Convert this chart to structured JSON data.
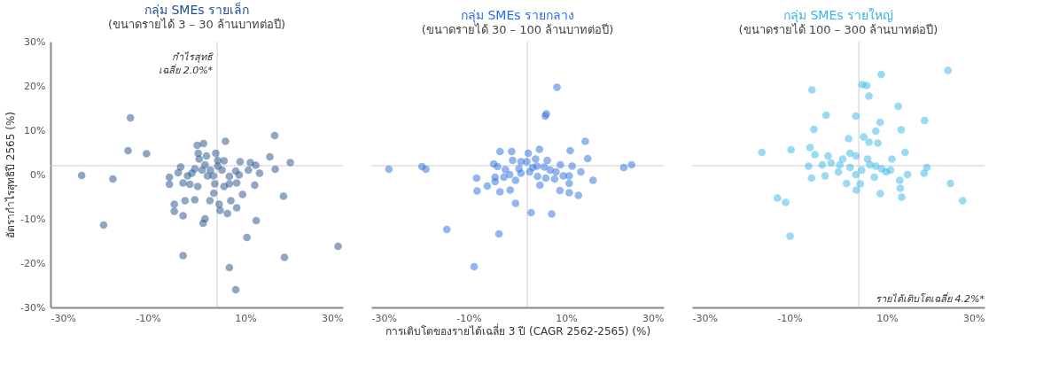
{
  "chart_data": [
    {
      "type": "scatter",
      "title": "กลุ่ม SMEs รายเล็ก",
      "subtitle": "(ขนาดรายได้ 3 – 30 ล้านบาทต่อปี)",
      "ylabel": "อัตรากำไรสุทธิปี 2565 (%)",
      "xlim": [
        -30,
        30
      ],
      "ylim": [
        -30,
        30
      ],
      "xticks": [
        {
          "value": -30,
          "label": "-30%"
        },
        {
          "value": -10,
          "label": "-10%"
        },
        {
          "value": 10,
          "label": "10%"
        },
        {
          "value": 30,
          "label": "30%"
        }
      ],
      "yticks": [
        {
          "value": -30,
          "label": "-30%"
        },
        {
          "value": -20,
          "label": "-20%"
        },
        {
          "value": -10,
          "label": "-10%"
        },
        {
          "value": 0,
          "label": "0%"
        },
        {
          "value": 10,
          "label": "10%"
        },
        {
          "value": 20,
          "label": "20%"
        },
        {
          "value": 30,
          "label": "30%"
        }
      ],
      "grid": false,
      "marker": "circle",
      "annotations": [
        "กำไรสุทธิ เฉลี่ย 2.0%*"
      ],
      "ref_lines": [
        {
          "axis": "x",
          "value": 4.2,
          "color": "#cccccc"
        },
        {
          "axis": "y",
          "value": 2.0,
          "color": "#cccccc"
        }
      ],
      "series": [
        {
          "color": "#1f4e8c",
          "x": [
            -13.6,
            -14.1,
            -10.3,
            -23.6,
            -17.2,
            -19.1,
            -2.8,
            16.0,
            15.0,
            19.2,
            16.1,
            17.8,
            18.0,
            29.0,
            6.7,
            8.0,
            10.3,
            12.2,
            11.9,
            9.4,
            8.2,
            6.3,
            7.0,
            4.8,
            4.6,
            1.7,
            1.3,
            -0.4,
            -2.4,
            -2.8,
            -4.6,
            -4.6,
            -5.6,
            -5.6,
            -2.8,
            -3.3,
            -3.8,
            -1.4,
            0.2,
            0.1,
            1.4,
            5.9,
            3.9,
            5.6,
            8.9,
            11.0,
            12.1,
            12.9,
            10.6,
            8.7,
            8.0,
            6.7,
            6.7,
            5.6,
            8.2,
            3.5,
            2.7,
            3.7,
            3.4,
            2.8,
            1.7,
            0.5,
            0.3,
            2.0,
            -1.0,
            -1.9,
            -0.4,
            1.1,
            4.3,
            5.2,
            4.3,
            2.2
          ],
          "values": [
            12.8,
            5.4,
            4.7,
            -0.2,
            -1.0,
            -11.4,
            -18.3,
            8.8,
            4.0,
            2.7,
            1.2,
            -4.9,
            -18.7,
            -16.2,
            -21.0,
            -26.0,
            -14.2,
            -10.4,
            -2.4,
            -4.5,
            -7.5,
            -8.8,
            -5.9,
            -8.1,
            -6.7,
            -10.0,
            -11.0,
            -5.7,
            -5.9,
            -9.3,
            -6.7,
            -8.3,
            -2.2,
            -0.6,
            -1.9,
            1.7,
            0.4,
            -2.2,
            -2.7,
            6.6,
            7.0,
            7.5,
            4.8,
            3.1,
            2.9,
            2.7,
            2.1,
            0.3,
            1.0,
            -0.1,
            0.8,
            -0.4,
            -2.1,
            -2.7,
            -1.9,
            -4.2,
            -5.9,
            -2.1,
            -0.3,
            1.0,
            2.2,
            3.5,
            4.8,
            4.2,
            0.3,
            -0.3,
            1.3,
            1.0,
            1.9,
            1.0,
            3.2,
            -0.3
          ]
        }
      ]
    },
    {
      "type": "scatter",
      "title": "กลุ่ม SMEs รายกลาง",
      "subtitle": "(ขนาดรายได้ 30 – 100 ล้านบาทต่อปี)",
      "xlabel": "การเติบโตของรายได้เฉลี่ย 3 ปี (CAGR 2562-2565) (%)",
      "xlim": [
        -30,
        30
      ],
      "ylim": [
        -30,
        30
      ],
      "xticks": [
        {
          "value": -30,
          "label": "-30%"
        },
        {
          "value": -10,
          "label": "-10%"
        },
        {
          "value": 10,
          "label": "10%"
        },
        {
          "value": 30,
          "label": "30%"
        }
      ],
      "tick_labels": "x",
      "grid": false,
      "marker": "circle",
      "ref_lines": [
        {
          "axis": "x",
          "value": 2.0,
          "color": "#cccccc"
        },
        {
          "axis": "y",
          "value": 2.0,
          "color": "#cccccc"
        }
      ],
      "series": [
        {
          "color": "#2a6de0",
          "x": [
            8.1,
            5.9,
            5.7,
            13.9,
            10.8,
            14.4,
            4.5,
            -3.6,
            -1.2,
            21.8,
            23.4,
            -26.4,
            -19.6,
            -18.8,
            -8.4,
            -8.3,
            -6.2,
            -3.6,
            -1.5,
            -0.4,
            2.8,
            7.0,
            -14.5,
            -3.8,
            -8.9,
            15.5,
            13.0,
            12.5,
            10.6,
            10.6,
            10.6,
            8.7,
            11.2,
            8.8,
            4.6,
            4.1,
            -4.9,
            -4.1,
            -4.6,
            -4.6,
            -2.5,
            -1.0,
            0.7,
            2.2,
            1.9,
            3.1,
            5.5,
            6.7,
            7.9,
            9.4,
            -0.4,
            0.7,
            -1.6,
            -2.8,
            3.7,
            6.1,
            7.6,
            5.8,
            2.5,
            4.0,
            0.3
          ],
          "values": [
            19.7,
            13.7,
            13.2,
            7.5,
            5.4,
            3.6,
            5.7,
            5.2,
            5.2,
            1.6,
            2.2,
            1.2,
            1.8,
            1.2,
            -0.8,
            -3.7,
            -2.6,
            -3.9,
            -3.5,
            -6.5,
            -8.6,
            -8.9,
            -12.4,
            -13.4,
            -20.8,
            -1.3,
            0.6,
            -4.7,
            -4.1,
            -2.0,
            -0.3,
            -3.6,
            1.9,
            2.2,
            -2.4,
            -0.4,
            2.4,
            1.8,
            -0.6,
            -1.6,
            1.1,
            3.2,
            2.9,
            4.8,
            2.9,
            1.6,
            1.7,
            1.0,
            0.6,
            -0.3,
            -1.3,
            0.3,
            0.0,
            -0.6,
            3.5,
            3.2,
            -1.0,
            -0.8,
            0.6,
            1.9,
            1.3
          ]
        }
      ]
    },
    {
      "type": "scatter",
      "title": "กลุ่ม SMEs รายใหญ่",
      "subtitle": "(ขนาดรายได้ 100 – 300 ล้านบาทต่อปี)",
      "xlim": [
        -30,
        30
      ],
      "ylim": [
        -30,
        30
      ],
      "xticks": [
        {
          "value": -30,
          "label": "-30%"
        },
        {
          "value": -10,
          "label": "-10%"
        },
        {
          "value": 10,
          "label": "10%"
        },
        {
          "value": 30,
          "label": "30%"
        }
      ],
      "tick_labels": "x",
      "grid": false,
      "marker": "circle",
      "ref_lines": [
        {
          "axis": "x",
          "value": 4.2,
          "label": "รายได้เติบโตเฉลี่ย 4.2%*",
          "color": "#cccccc"
        },
        {
          "axis": "y",
          "value": 2.0,
          "color": "#cccccc"
        }
      ],
      "series": [
        {
          "color": "#35b5e5",
          "x": [
            22.5,
            8.8,
            4.9,
            5.8,
            -5.4,
            6.3,
            12.3,
            -2.5,
            3.6,
            17.7,
            8.6,
            -5.0,
            7.7,
            12.9,
            5.2,
            2.1,
            6.3,
            8.1,
            -15.7,
            -9.7,
            -5.8,
            13.7,
            11.0,
            23.0,
            25.5,
            18.2,
            17.6,
            14.2,
            12.6,
            12.7,
            13.0,
            8.6,
            4.5,
            3.7,
            1.7,
            -2.7,
            -5.5,
            -6.1,
            -4.8,
            -12.5,
            -10.8,
            -9.9,
            7.4,
            9.8,
            7.7,
            6.0,
            3.6,
            2.4,
            0.9,
            0.3,
            0.0,
            2.4,
            4.8,
            6.5,
            8.9,
            10.7,
            -2.1,
            -3.3,
            -1.5,
            3.6
          ],
          "values": [
            23.5,
            22.6,
            20.3,
            20.1,
            19.1,
            17.7,
            15.4,
            13.4,
            13.2,
            12.2,
            11.8,
            10.2,
            9.8,
            10.1,
            8.5,
            8.1,
            7.3,
            7.1,
            5.0,
            5.6,
            6.1,
            5.0,
            3.5,
            -2.0,
            -5.9,
            1.6,
            0.3,
            0.0,
            -1.3,
            -3.1,
            -5.1,
            -4.3,
            -2.1,
            -3.5,
            -2.0,
            -0.3,
            -0.8,
            1.9,
            4.5,
            -5.3,
            -6.3,
            -13.9,
            -0.6,
            0.6,
            1.9,
            3.5,
            4.2,
            4.8,
            3.5,
            2.2,
            0.6,
            1.6,
            1.0,
            2.2,
            1.3,
            1.0,
            4.2,
            2.2,
            2.6,
            0.0
          ]
        }
      ]
    }
  ]
}
